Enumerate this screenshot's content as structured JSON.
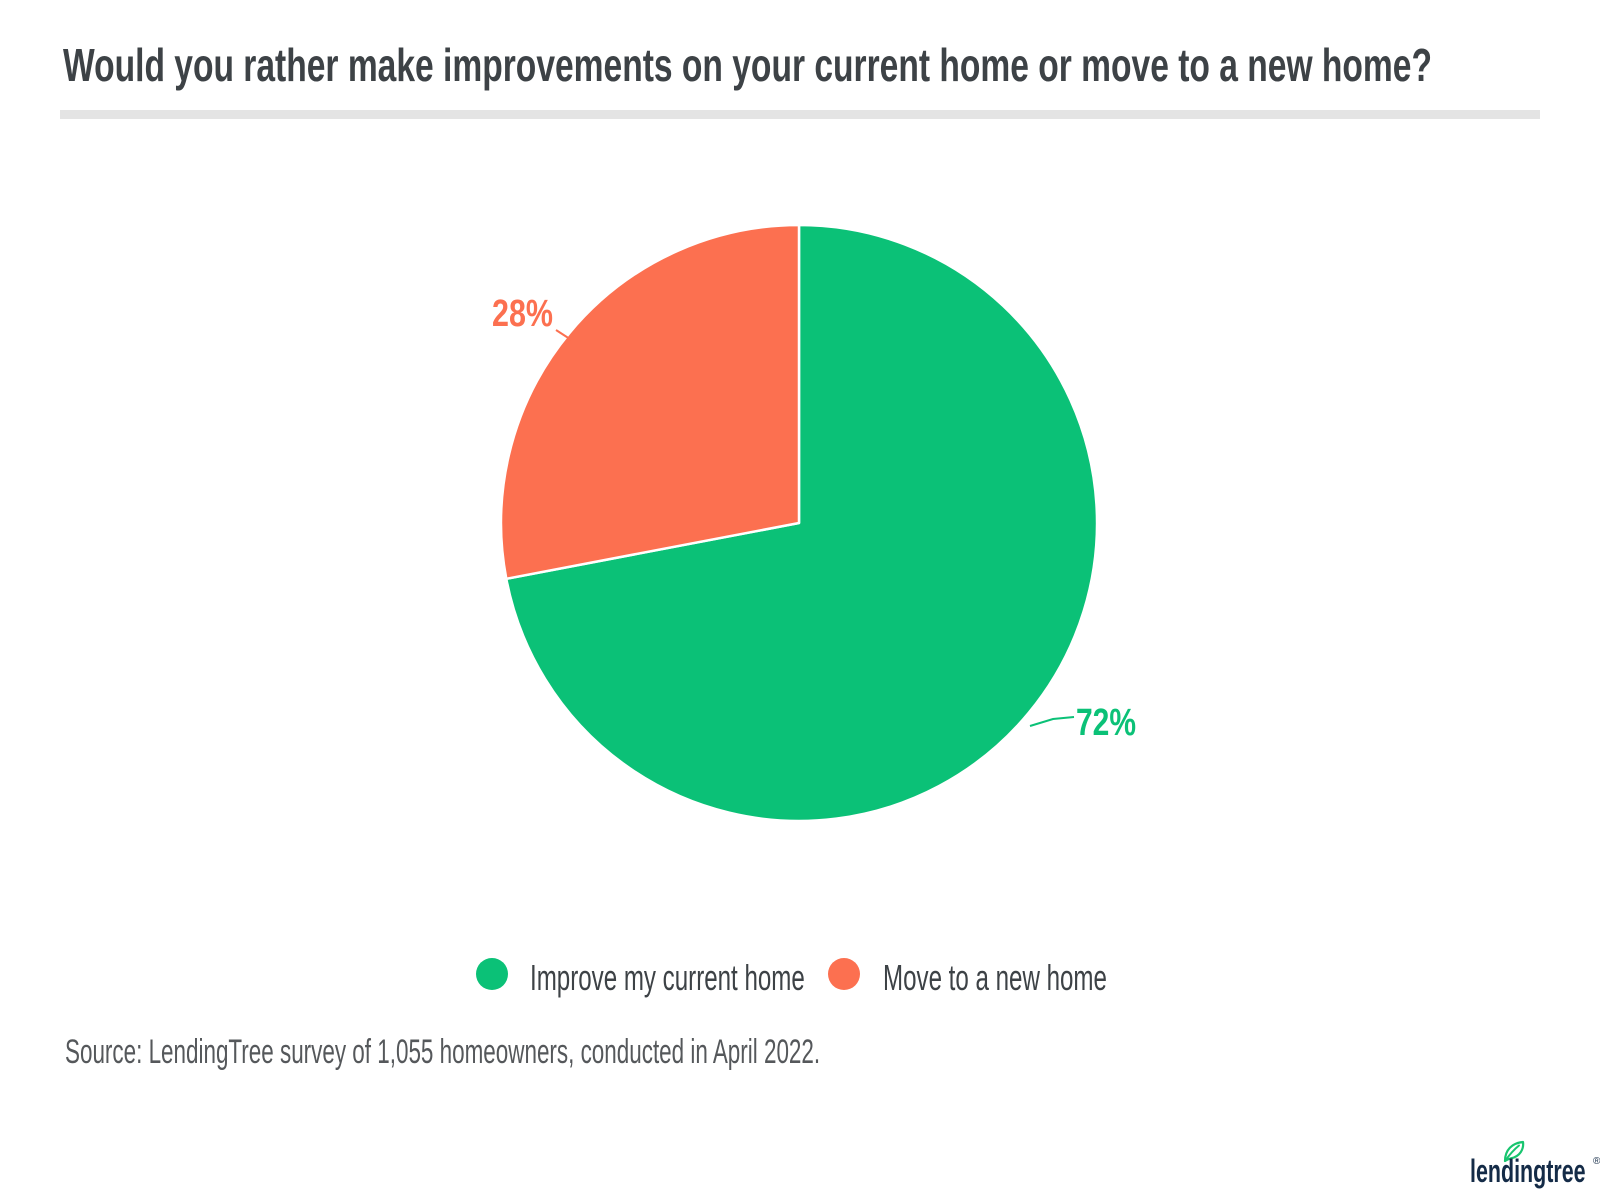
{
  "chart_data": {
    "type": "pie",
    "title": "Would you rather make improvements on your current home or move to a new home?",
    "start_angle_deg": 0,
    "direction": "clockwise",
    "legend_position": "bottom",
    "slices": [
      {
        "id": "improve",
        "label": "Improve my current home",
        "value": 72,
        "display": "72%",
        "color": "#0bc177"
      },
      {
        "id": "move",
        "label": "Move to a new home",
        "value": 28,
        "display": "28%",
        "color": "#fc7050"
      }
    ]
  },
  "footer": {
    "source_text": "Source: LendingTree survey of 1,055 homeowners, conducted in April 2022."
  },
  "logo": {
    "text": "lendingtree",
    "registered": "®",
    "navy": "#142b47",
    "leaf_green": "#18c56f"
  },
  "style": {
    "divider_gray": "#e4e4e4",
    "text_dark": "#3d4246",
    "text_gray": "#55585b"
  }
}
